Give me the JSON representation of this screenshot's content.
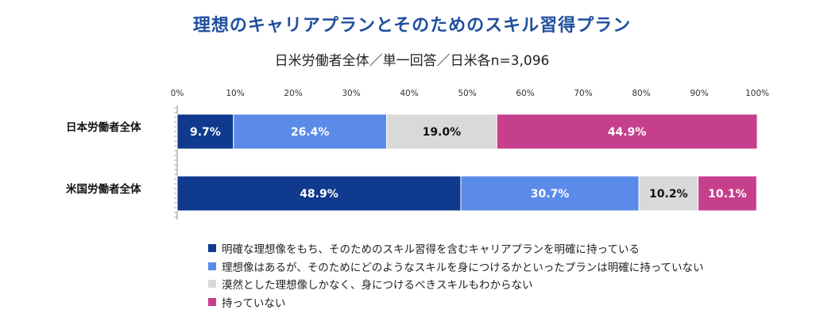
{
  "chart_data": {
    "type": "bar",
    "orientation": "horizontal",
    "stacked": true,
    "title": "理想のキャリアプランとそのためのスキル習得プラン",
    "subtitle": "日米労働者全体／単一回答／日米各n=3,096",
    "categories": [
      "日本労働者全体",
      "米国労働者全体"
    ],
    "series": [
      {
        "name": "明確な理想像をもち、そのためのスキル習得を含むキャリアプランを明確に持っている",
        "color": "#0f3a8d",
        "label_color": "#ffffff",
        "values": [
          9.7,
          48.9
        ],
        "labels": [
          "9.7%",
          "48.9%"
        ]
      },
      {
        "name": "理想像はあるが、そのためにどのようなスキルを身につけるかといったプランは明確に持っていない",
        "color": "#5b8be8",
        "label_color": "#ffffff",
        "values": [
          26.4,
          30.7
        ],
        "labels": [
          "26.4%",
          "30.7%"
        ]
      },
      {
        "name": "漠然とした理想像しかなく、身につけるべきスキルもわからない",
        "color": "#d9d9d9",
        "label_color": "#111111",
        "values": [
          19.0,
          10.2
        ],
        "labels": [
          "19.0%",
          "10.2%"
        ]
      },
      {
        "name": "持っていない",
        "color": "#c63f8c",
        "label_color": "#ffffff",
        "values": [
          44.9,
          10.1
        ],
        "labels": [
          "44.9%",
          "10.1%"
        ]
      }
    ],
    "xlim": [
      0,
      100
    ],
    "ticks": [
      "0%",
      "10%",
      "20%",
      "30%",
      "40%",
      "50%",
      "60%",
      "70%",
      "80%",
      "90%",
      "100%"
    ],
    "grid": false,
    "legend_position": "bottom"
  }
}
